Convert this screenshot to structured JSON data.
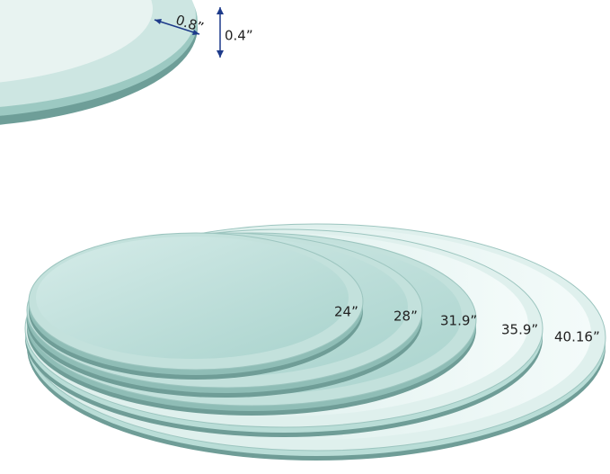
{
  "detail": {
    "edge_width": "0.8”",
    "thickness": "0.4”"
  },
  "sizes": [
    "24”",
    "28”",
    "31.9”",
    "35.9”",
    "40.16”"
  ]
}
